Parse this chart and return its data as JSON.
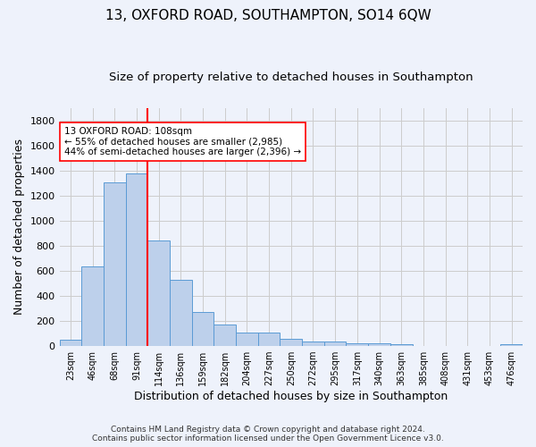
{
  "title": "13, OXFORD ROAD, SOUTHAMPTON, SO14 6QW",
  "subtitle": "Size of property relative to detached houses in Southampton",
  "xlabel": "Distribution of detached houses by size in Southampton",
  "ylabel": "Number of detached properties",
  "categories": [
    "23sqm",
    "46sqm",
    "68sqm",
    "91sqm",
    "114sqm",
    "136sqm",
    "159sqm",
    "182sqm",
    "204sqm",
    "227sqm",
    "250sqm",
    "272sqm",
    "295sqm",
    "317sqm",
    "340sqm",
    "363sqm",
    "385sqm",
    "408sqm",
    "431sqm",
    "453sqm",
    "476sqm"
  ],
  "values": [
    50,
    635,
    1305,
    1375,
    840,
    525,
    275,
    175,
    105,
    105,
    60,
    35,
    35,
    25,
    25,
    15,
    0,
    0,
    0,
    0,
    15
  ],
  "bar_color": "#bdd0eb",
  "bar_edge_color": "#5b9bd5",
  "vline_index": 4,
  "vline_color": "red",
  "annotation_text": "13 OXFORD ROAD: 108sqm\n← 55% of detached houses are smaller (2,985)\n44% of semi-detached houses are larger (2,396) →",
  "annotation_box_color": "white",
  "annotation_box_edge_color": "red",
  "ylim": [
    0,
    1900
  ],
  "yticks": [
    0,
    200,
    400,
    600,
    800,
    1000,
    1200,
    1400,
    1600,
    1800
  ],
  "grid_color": "#cccccc",
  "background_color": "#eef2fb",
  "footnote1": "Contains HM Land Registry data © Crown copyright and database right 2024.",
  "footnote2": "Contains public sector information licensed under the Open Government Licence v3.0.",
  "title_fontsize": 11,
  "subtitle_fontsize": 9.5,
  "xlabel_fontsize": 9,
  "ylabel_fontsize": 9,
  "annotation_fontsize": 7.5,
  "footnote_fontsize": 6.5
}
